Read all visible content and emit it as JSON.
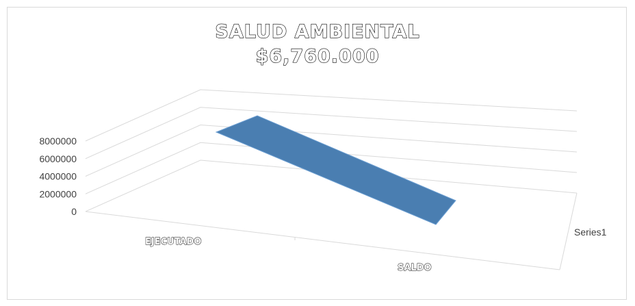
{
  "chart_data": {
    "type": "area",
    "view": "3d",
    "title": "SALUD AMBIENTAL",
    "subtitle": "$6,760.000",
    "categories": [
      "EJECUTADO",
      "SALDO"
    ],
    "series": [
      {
        "name": "Series1",
        "values": [
          6760000,
          0
        ]
      }
    ],
    "ylim": [
      0,
      8000000
    ],
    "yticks": [
      0,
      2000000,
      4000000,
      6000000,
      8000000
    ],
    "ytick_labels": [
      "0",
      "2000000",
      "4000000",
      "6000000",
      "8000000"
    ],
    "grid": true,
    "colors": {
      "series": "#4a7eb1",
      "edge": "#6ea0d3",
      "grid": "#d9d9d9"
    }
  }
}
